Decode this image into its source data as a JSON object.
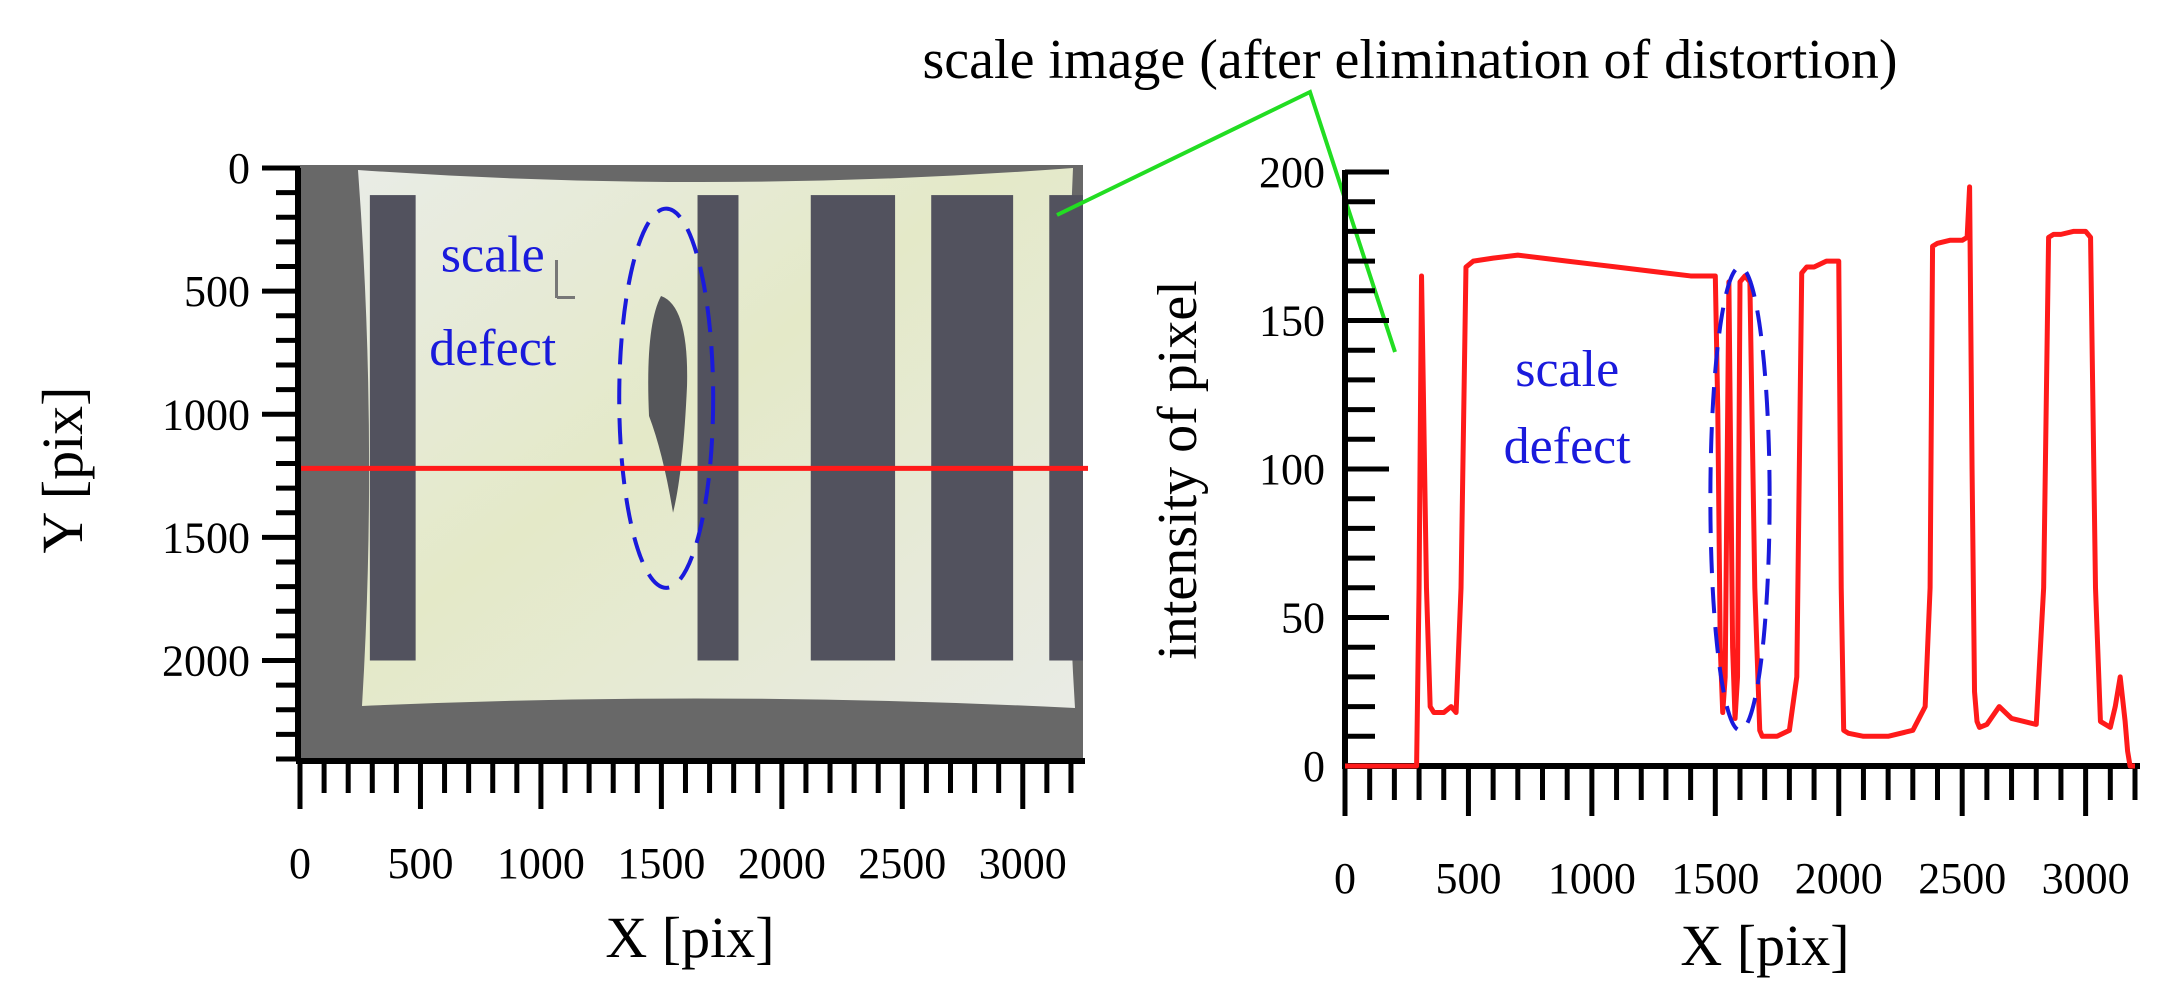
{
  "header": {
    "caption": "scale image (after elimination of distortion)"
  },
  "colors": {
    "profile_line": "#ff1a1a",
    "defect_mark": "#1a1adc",
    "pointer_line": "#22dd22",
    "frame_bg": "#686868",
    "paper": "#e8ebdc",
    "stripe": "#52525e"
  },
  "chart_data": [
    {
      "type": "image",
      "title": "",
      "xlabel": "X [pix]",
      "ylabel": "Y [pix]",
      "xlim": [
        0,
        3250
      ],
      "ylim": [
        2400,
        0
      ],
      "x_ticks": [
        0,
        500,
        1000,
        1500,
        2000,
        2500,
        3000
      ],
      "y_ticks": [
        0,
        500,
        1000,
        1500,
        2000
      ],
      "annotation": "scale\ndefect",
      "profile_row_y": 1220,
      "stripe_x_ranges": [
        [
          290,
          480
        ],
        [
          1650,
          1820
        ],
        [
          2120,
          2470
        ],
        [
          2620,
          2960
        ],
        [
          3110,
          3250
        ]
      ],
      "defect_ellipse": {
        "cx": 1520,
        "cy": 935,
        "rx": 195,
        "ry": 770
      }
    },
    {
      "type": "line",
      "title": "",
      "xlabel": "X [pix]",
      "ylabel": "intensity of pixel",
      "xlim": [
        0,
        3200
      ],
      "ylim": [
        0,
        200
      ],
      "x_ticks": [
        0,
        500,
        1000,
        1500,
        2000,
        2500,
        3000
      ],
      "y_ticks": [
        0,
        50,
        100,
        150,
        200
      ],
      "annotation": "scale\ndefect",
      "defect_ellipse": {
        "cx": 1600,
        "cy": 90,
        "rx": 120,
        "ry": 78
      },
      "series": [
        {
          "x": [
            0,
            290,
            300,
            310,
            330,
            345,
            360,
            400,
            430,
            450,
            470,
            490,
            520,
            600,
            700,
            800,
            900,
            1000,
            1100,
            1200,
            1300,
            1400,
            1500,
            1510,
            1520,
            1530,
            1540,
            1555,
            1570,
            1580,
            1590,
            1600,
            1620,
            1640,
            1660,
            1680,
            1690,
            1700,
            1750,
            1800,
            1830,
            1850,
            1870,
            1900,
            1950,
            2000,
            2010,
            2020,
            2040,
            2100,
            2200,
            2300,
            2350,
            2370,
            2380,
            2400,
            2450,
            2500,
            2520,
            2530,
            2540,
            2550,
            2560,
            2570,
            2600,
            2650,
            2700,
            2750,
            2800,
            2830,
            2850,
            2870,
            2900,
            2950,
            3000,
            3020,
            3040,
            3060,
            3100,
            3120,
            3140,
            3160,
            3170,
            3180,
            3200
          ],
          "y": [
            0,
            0,
            60,
            165,
            60,
            20,
            18,
            18,
            20,
            18,
            60,
            168,
            170,
            171,
            172,
            171,
            170,
            169,
            168,
            167,
            166,
            165,
            165,
            120,
            40,
            18,
            30,
            163,
            40,
            16,
            30,
            163,
            165,
            163,
            60,
            12,
            10,
            10,
            10,
            12,
            30,
            166,
            168,
            168,
            170,
            170,
            60,
            12,
            11,
            10,
            10,
            12,
            20,
            60,
            175,
            176,
            177,
            177,
            178,
            195,
            100,
            25,
            15,
            13,
            14,
            20,
            16,
            15,
            14,
            60,
            178,
            179,
            179,
            180,
            180,
            178,
            60,
            15,
            13,
            20,
            30,
            15,
            5,
            0,
            0
          ]
        }
      ]
    }
  ]
}
